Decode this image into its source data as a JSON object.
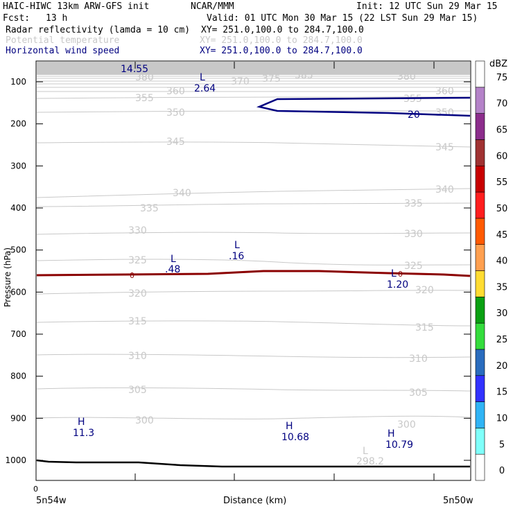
{
  "header": {
    "model": "HAIC-HIWC 13km ARW-GFS init",
    "org": "NCAR/MMM",
    "init": "Init: 12 UTC Sun 29 Mar 15",
    "fcst_label": "Fcst:",
    "fcst_value": "13 h",
    "valid": "Valid: 01 UTC Mon 30 Mar 15 (22 LST Sun 29 Mar 15)",
    "fields": [
      {
        "name": "Radar reflectivity (lamda = 10 cm)",
        "xy": "XY= 251.0,100.0 to 284.7,100.0",
        "color": "#000000"
      },
      {
        "name": "Potential temperature",
        "xy": "XY= 251.0,100.0 to 284.7,100.0",
        "color": "#c8c8c8"
      },
      {
        "name": "Horizontal wind speed",
        "xy": "XY= 251.0,100.0 to 284.7,100.0",
        "color": "#000080"
      }
    ]
  },
  "chart_data": {
    "type": "line",
    "xlabel": "Distance (km)",
    "ylabel": "Pressure (hPa)",
    "x_tick_labels": [
      "0"
    ],
    "x_end_labels": [
      "5n54w",
      "5n50w"
    ],
    "y_ticks": [
      100,
      200,
      300,
      400,
      500,
      600,
      700,
      800,
      900,
      1000
    ],
    "ylim": [
      1050,
      50
    ],
    "colorbar": {
      "unit": "dBZ",
      "levels": [
        0,
        5,
        10,
        15,
        20,
        25,
        30,
        35,
        40,
        45,
        50,
        55,
        60,
        65,
        70,
        75
      ],
      "colors": [
        "#ffffff",
        "#7ffffa",
        "#30b4f5",
        "#3232ff",
        "#2a6cbe",
        "#34dc3c",
        "#09a012",
        "#ffdc32",
        "#ffa050",
        "#ff5a00",
        "#ff1e1e",
        "#c80000",
        "#a03232",
        "#8c2d8c",
        "#b482c8",
        "#ffffff"
      ]
    },
    "theta_contours": [
      {
        "label": "300",
        "p": 900
      },
      {
        "label": "305",
        "p": 830
      },
      {
        "label": "310",
        "p": 755
      },
      {
        "label": "315",
        "p": 680
      },
      {
        "label": "320",
        "p": 605
      },
      {
        "label": "325",
        "p": 530
      },
      {
        "label": "330",
        "p": 455
      },
      {
        "label": "335",
        "p": 390
      },
      {
        "label": "340",
        "p": 350
      },
      {
        "label": "345",
        "p": 250
      },
      {
        "label": "350",
        "p": 170
      },
      {
        "label": "355",
        "p": 140
      },
      {
        "label": "360",
        "p": 120
      },
      {
        "label": "370",
        "p": 100
      },
      {
        "label": "375",
        "p": 95
      },
      {
        "label": "380",
        "p": 92
      },
      {
        "label": "385",
        "p": 87
      }
    ],
    "wind_contour_label": "20",
    "freezing_level_label": "0",
    "annotations": [
      {
        "kind": "L",
        "value": "14.55",
        "color": "#000080"
      },
      {
        "kind": "L",
        "value": "2.64",
        "color": "#000080"
      },
      {
        "kind": "L",
        "value": ".48",
        "color": "#000080"
      },
      {
        "kind": "L",
        "value": ".16",
        "color": "#000080"
      },
      {
        "kind": "L",
        "value": "1.20",
        "color": "#000080"
      },
      {
        "kind": "H",
        "value": "11.3",
        "color": "#000080"
      },
      {
        "kind": "H",
        "value": "10.68",
        "color": "#000080"
      },
      {
        "kind": "H",
        "value": "10.79",
        "color": "#000080"
      },
      {
        "kind": "L",
        "value": "298.2",
        "color": "#c8c8c8"
      }
    ]
  }
}
